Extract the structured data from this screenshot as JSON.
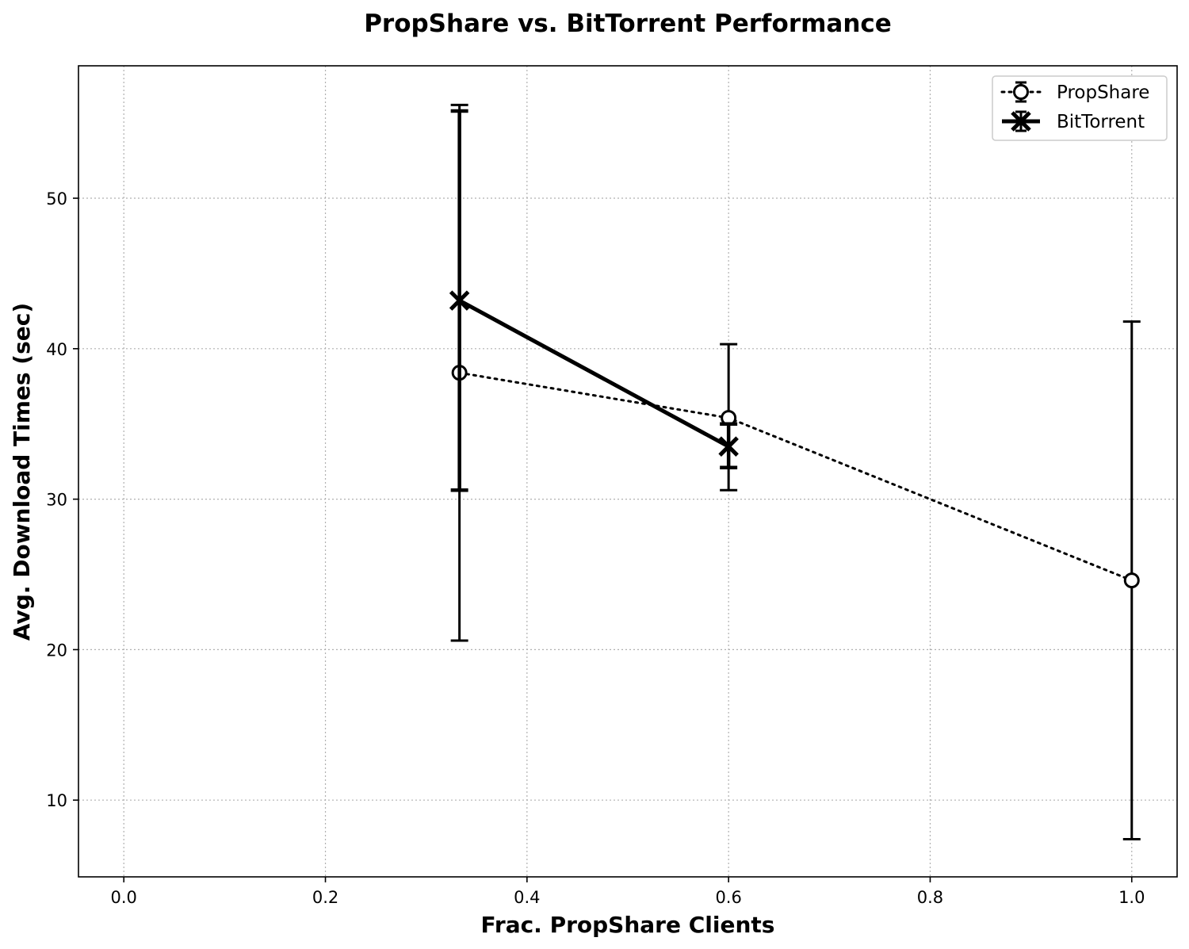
{
  "chart_data": {
    "type": "line",
    "title": "PropShare vs. BitTorrent Performance",
    "xlabel": "Frac. PropShare Clients",
    "ylabel": "Avg. Download Times (sec)",
    "xlim": [
      -0.045,
      1.045
    ],
    "ylim": [
      4.9,
      58.8
    ],
    "xticks": [
      0.0,
      0.2,
      0.4,
      0.6,
      0.8,
      1.0
    ],
    "xtick_labels": [
      "0.0",
      "0.2",
      "0.4",
      "0.6",
      "0.8",
      "1.0"
    ],
    "yticks": [
      10,
      20,
      30,
      40,
      50
    ],
    "ytick_labels": [
      "10",
      "20",
      "30",
      "40",
      "50"
    ],
    "grid": true,
    "legend_position": "top-right",
    "series": [
      {
        "name": "PropShare",
        "style": "dotted",
        "marker": "circle",
        "color": "#000000",
        "x": [
          0.333,
          0.6,
          1.0
        ],
        "y": [
          38.4,
          35.4,
          24.6
        ],
        "err_low": [
          20.6,
          30.6,
          7.4
        ],
        "err_high": [
          56.2,
          40.3,
          41.8
        ]
      },
      {
        "name": "BitTorrent",
        "style": "solid",
        "marker": "x",
        "color": "#000000",
        "x": [
          0.333,
          0.6
        ],
        "y": [
          43.2,
          33.5
        ],
        "err_low": [
          30.6,
          32.1
        ],
        "err_high": [
          55.8,
          35.0
        ]
      }
    ]
  }
}
